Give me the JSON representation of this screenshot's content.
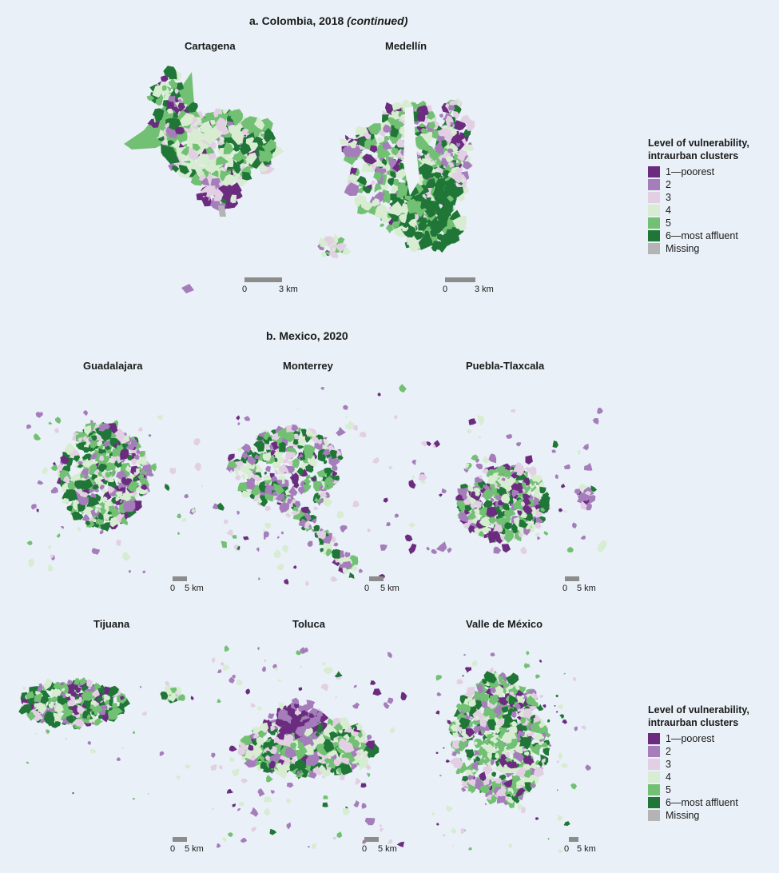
{
  "colors": {
    "c1": "#6b2c80",
    "c2": "#a57dbb",
    "c3": "#e3cfe4",
    "c4": "#d7ecd1",
    "c5": "#72c073",
    "c6": "#1f7637",
    "missing": "#b4b4b4",
    "scalebar": "#8c8c8c",
    "background": "#e9f0f7"
  },
  "section_a": {
    "title": "a. Colombia, 2018",
    "title_suffix": "(continued)"
  },
  "section_b": {
    "title": "b. Mexico, 2020"
  },
  "cities": {
    "cartagena": {
      "name": "Cartagena",
      "scale_zero": "0",
      "scale_end": "3 km"
    },
    "medellin": {
      "name": "Medellín",
      "scale_zero": "0",
      "scale_end": "3 km"
    },
    "guadalajara": {
      "name": "Guadalajara",
      "scale_zero": "0",
      "scale_end": "5 km"
    },
    "monterrey": {
      "name": "Monterrey",
      "scale_zero": "0",
      "scale_end": "5 km"
    },
    "puebla": {
      "name": "Puebla-Tlaxcala",
      "scale_zero": "0",
      "scale_end": "5 km"
    },
    "tijuana": {
      "name": "Tijuana",
      "scale_zero": "0",
      "scale_end": "5 km"
    },
    "toluca": {
      "name": "Toluca",
      "scale_zero": "0",
      "scale_end": "5 km"
    },
    "valle": {
      "name": "Valle de México",
      "scale_zero": "0",
      "scale_end": "5 km"
    }
  },
  "legend": {
    "title_line1": "Level of vulnerability,",
    "title_line2": "intraurban clusters",
    "items": [
      {
        "label": "1—poorest",
        "color": "#6b2c80"
      },
      {
        "label": "2",
        "color": "#a57dbb"
      },
      {
        "label": "3",
        "color": "#e3cfe4"
      },
      {
        "label": "4",
        "color": "#d7ecd1"
      },
      {
        "label": "5",
        "color": "#72c073"
      },
      {
        "label": "6—most affluent",
        "color": "#1f7637"
      },
      {
        "label": "Missing",
        "color": "#b4b4b4"
      }
    ]
  }
}
